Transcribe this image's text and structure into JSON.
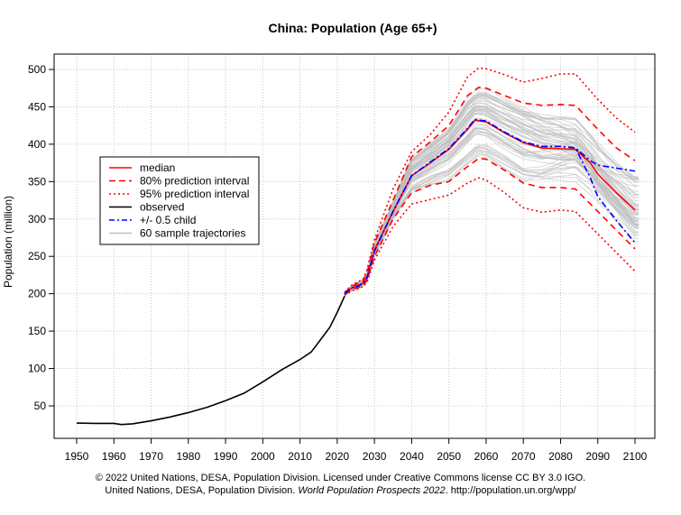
{
  "chart_data": {
    "type": "line",
    "title": "China: Population (Age 65+)",
    "xlabel": "",
    "ylabel": "Population (million)",
    "xlim": [
      1944,
      2106
    ],
    "ylim": [
      10,
      521
    ],
    "grid": true,
    "x_ticks": [
      1950,
      1960,
      1970,
      1980,
      1990,
      2000,
      2010,
      2020,
      2030,
      2040,
      2050,
      2060,
      2070,
      2080,
      2090,
      2100
    ],
    "y_ticks": [
      50,
      100,
      150,
      200,
      250,
      300,
      350,
      400,
      450,
      500
    ],
    "legend_position": "left",
    "legend": [
      "median",
      "80% prediction interval",
      "95% prediction interval",
      "observed",
      "+/- 0.5 child",
      "60 sample trajectories"
    ],
    "colors": {
      "median": "#ff0000",
      "interval": "#ff0000",
      "observed": "#000000",
      "child": "#0000ff",
      "trajectories": "#bebebe"
    },
    "series": {
      "observed": {
        "x": [
          1950,
          1955,
          1960,
          1962,
          1965,
          1970,
          1975,
          1980,
          1985,
          1990,
          1995,
          2000,
          2005,
          2010,
          2013,
          2015,
          2018,
          2020,
          2022
        ],
        "y": [
          27,
          26.5,
          26.5,
          25,
          26,
          30,
          35,
          41,
          48,
          57,
          67,
          82,
          98,
          112,
          122,
          135,
          155,
          175,
          197
        ]
      },
      "median": {
        "x": [
          2022,
          2024,
          2026,
          2027,
          2028,
          2030,
          2035,
          2040,
          2045,
          2050,
          2055,
          2057,
          2060,
          2065,
          2070,
          2075,
          2080,
          2084,
          2088,
          2090,
          2095,
          2100
        ],
        "y": [
          200,
          208,
          212,
          215,
          222,
          258,
          310,
          358,
          375,
          393,
          420,
          432,
          430,
          415,
          402,
          395,
          394,
          393,
          375,
          360,
          335,
          312
        ]
      },
      "child_upper": {
        "x": [
          2022,
          2024,
          2026,
          2027,
          2028,
          2030,
          2035,
          2040,
          2045,
          2050,
          2055,
          2057,
          2060,
          2065,
          2070,
          2075,
          2080,
          2084,
          2088,
          2090,
          2095,
          2100
        ],
        "y": [
          200,
          208,
          211,
          214,
          221,
          257,
          310,
          358,
          376,
          394,
          421,
          433,
          431,
          416,
          403,
          397,
          397,
          395,
          378,
          372,
          368,
          364
        ]
      },
      "child_lower": {
        "x": [
          2022,
          2024,
          2026,
          2027,
          2028,
          2030,
          2035,
          2040,
          2045,
          2050,
          2055,
          2057,
          2060,
          2065,
          2070,
          2075,
          2080,
          2084,
          2088,
          2090,
          2095,
          2100
        ],
        "y": [
          200,
          208,
          211,
          214,
          221,
          257,
          310,
          358,
          376,
          394,
          421,
          433,
          431,
          416,
          403,
          397,
          397,
          395,
          355,
          330,
          298,
          268
        ]
      },
      "pi80_upper": {
        "x": [
          2022,
          2024,
          2026,
          2027,
          2028,
          2030,
          2035,
          2040,
          2045,
          2050,
          2055,
          2058,
          2060,
          2065,
          2070,
          2075,
          2080,
          2084,
          2090,
          2095,
          2100
        ],
        "y": [
          201,
          210,
          215,
          218,
          228,
          268,
          325,
          383,
          403,
          425,
          465,
          476,
          475,
          465,
          455,
          452,
          453,
          452,
          420,
          395,
          378
        ]
      },
      "pi80_lower": {
        "x": [
          2022,
          2024,
          2026,
          2027,
          2028,
          2030,
          2035,
          2040,
          2045,
          2050,
          2055,
          2058,
          2060,
          2065,
          2070,
          2075,
          2080,
          2084,
          2090,
          2095,
          2100
        ],
        "y": [
          199,
          206,
          209,
          212,
          218,
          250,
          300,
          335,
          345,
          350,
          370,
          381,
          380,
          365,
          348,
          342,
          342,
          340,
          310,
          285,
          260
        ]
      },
      "pi95_upper": {
        "x": [
          2022,
          2024,
          2026,
          2027,
          2028,
          2030,
          2035,
          2040,
          2045,
          2050,
          2055,
          2058,
          2060,
          2065,
          2070,
          2075,
          2080,
          2084,
          2090,
          2095,
          2100
        ],
        "y": [
          202,
          212,
          217,
          220,
          232,
          272,
          340,
          390,
          413,
          443,
          490,
          502,
          501,
          493,
          483,
          488,
          494,
          494,
          460,
          435,
          416
        ]
      },
      "pi95_lower": {
        "x": [
          2022,
          2024,
          2026,
          2027,
          2028,
          2030,
          2035,
          2040,
          2045,
          2050,
          2055,
          2058,
          2060,
          2065,
          2070,
          2075,
          2080,
          2084,
          2090,
          2095,
          2100
        ],
        "y": [
          198,
          204,
          207,
          210,
          215,
          245,
          290,
          320,
          326,
          332,
          348,
          355,
          352,
          335,
          315,
          309,
          312,
          310,
          280,
          255,
          230
        ]
      }
    },
    "sample_trajectories_count": 60
  },
  "footer": {
    "line1": "© 2022 United Nations, DESA, Population Division. Licensed under Creative Commons license CC BY 3.0 IGO.",
    "line2_prefix": "United Nations, DESA, Population Division. ",
    "line2_italic": "World Population Prospects 2022",
    "line2_suffix": ". http://population.un.org/wpp/"
  }
}
